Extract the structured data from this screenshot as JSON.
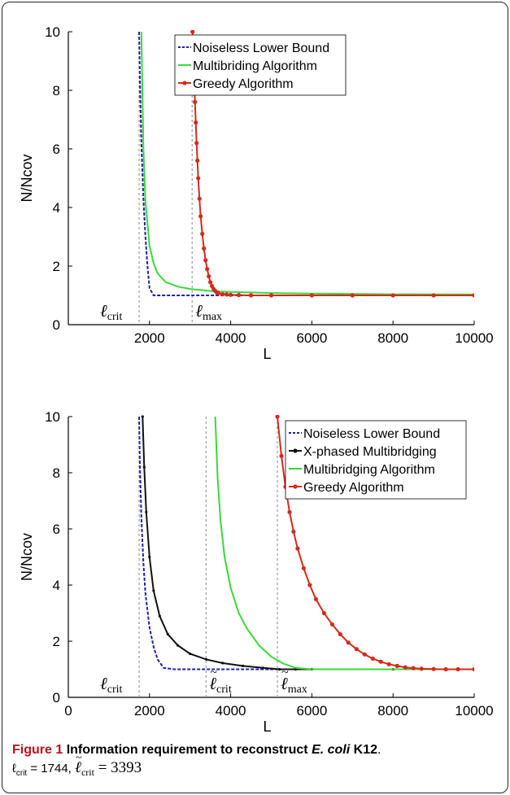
{
  "charts": [
    {
      "ylabel": "N/Ncov",
      "xlabel": "L",
      "x_ticks": [
        "2000",
        "4000",
        "6000",
        "8000",
        "10000"
      ],
      "y_ticks": [
        "0",
        "2",
        "4",
        "6",
        "8",
        "10"
      ],
      "legend": [
        "Noiseless Lower Bound",
        "Multibriding Algorithm",
        "Greedy Algorithm"
      ],
      "markers": [
        {
          "label": "ℓ",
          "sub": "crit",
          "tilde": false
        },
        {
          "label": "ℓ",
          "sub": "max",
          "tilde": false
        }
      ]
    },
    {
      "ylabel": "N/Ncov",
      "xlabel": "L",
      "x_ticks": [
        "0",
        "2000",
        "4000",
        "6000",
        "8000",
        "10000"
      ],
      "y_ticks": [
        "0",
        "2",
        "4",
        "6",
        "8",
        "10"
      ],
      "legend": [
        "Noiseless Lower Bound",
        "X-phased Multibridging",
        "Multibridging Algorithm",
        "Greedy Algorithm"
      ],
      "markers": [
        {
          "label": "ℓ",
          "sub": "crit",
          "tilde": false
        },
        {
          "label": "ℓ",
          "sub": "crit",
          "tilde": true
        },
        {
          "label": "ℓ",
          "sub": "max",
          "tilde": true
        }
      ]
    }
  ],
  "chart_data": [
    {
      "type": "line",
      "xlabel": "L",
      "ylabel": "N/Ncov",
      "xlim": [
        0,
        10000
      ],
      "ylim": [
        0,
        10
      ],
      "vlines": [
        1744,
        3050
      ],
      "series": [
        {
          "name": "Noiseless Lower Bound",
          "color": "#1f1fa8",
          "style": "dashed",
          "x": [
            1744,
            1760,
            1800,
            1850,
            1900,
            1950,
            2000,
            2100,
            2500,
            4000,
            6000,
            8000,
            10000
          ],
          "y": [
            10,
            8.6,
            6.2,
            4.3,
            3.0,
            2.0,
            1.25,
            1.0,
            1.0,
            1.0,
            1.0,
            1.0,
            1.0
          ]
        },
        {
          "name": "Multibriding Algorithm",
          "color": "#3ad83a",
          "style": "solid",
          "x": [
            1800,
            1850,
            1900,
            2000,
            2100,
            2200,
            2400,
            2700,
            3000,
            3500,
            4000,
            5000,
            6000,
            8000,
            10000
          ],
          "y": [
            10,
            6.0,
            4.2,
            2.7,
            2.1,
            1.75,
            1.45,
            1.3,
            1.22,
            1.15,
            1.12,
            1.08,
            1.06,
            1.04,
            1.03
          ]
        },
        {
          "name": "Greedy Algorithm",
          "color": "#d42a1c",
          "style": "marker",
          "x": [
            3060,
            3080,
            3100,
            3120,
            3140,
            3160,
            3180,
            3200,
            3230,
            3260,
            3300,
            3340,
            3380,
            3420,
            3460,
            3500,
            3540,
            3580,
            3620,
            3660,
            3700,
            3800,
            3900,
            4000,
            4200,
            4500,
            5000,
            6000,
            7000,
            8000,
            9000,
            10000
          ],
          "y": [
            10,
            9.2,
            8.4,
            7.6,
            6.9,
            6.2,
            5.6,
            5.0,
            4.3,
            3.7,
            3.1,
            2.6,
            2.2,
            1.9,
            1.65,
            1.45,
            1.32,
            1.22,
            1.15,
            1.1,
            1.07,
            1.04,
            1.03,
            1.02,
            1.01,
            1.0,
            1.0,
            1.0,
            1.0,
            1.0,
            1.0,
            1.0
          ]
        }
      ]
    },
    {
      "type": "line",
      "xlabel": "L",
      "ylabel": "N/Ncov",
      "xlim": [
        0,
        10000
      ],
      "ylim": [
        0,
        10
      ],
      "vlines": [
        1744,
        3393,
        5150
      ],
      "series": [
        {
          "name": "Noiseless Lower Bound",
          "color": "#1f1fa8",
          "style": "dashed",
          "x": [
            1744,
            1760,
            1800,
            1850,
            1900,
            2000,
            2100,
            2200,
            2350,
            2600,
            4000,
            6000,
            10000
          ],
          "y": [
            10,
            8.5,
            6.4,
            4.8,
            3.7,
            2.5,
            1.8,
            1.35,
            1.05,
            1.0,
            1.0,
            1.0,
            1.0
          ]
        },
        {
          "name": "X-phased Multibridging",
          "color": "#111111",
          "style": "dotted-marker",
          "x": [
            1830,
            1870,
            1920,
            2000,
            2100,
            2250,
            2450,
            2700,
            3000,
            3400,
            3800,
            4300,
            4800,
            5200,
            5600,
            6000,
            8000,
            10000
          ],
          "y": [
            10,
            8.2,
            6.6,
            5.0,
            3.8,
            2.9,
            2.25,
            1.85,
            1.55,
            1.35,
            1.22,
            1.12,
            1.05,
            1.0,
            1.0,
            1.0,
            1.0,
            1.0
          ]
        },
        {
          "name": "Multibridging Algorithm",
          "color": "#3ad83a",
          "style": "solid",
          "x": [
            3620,
            3680,
            3750,
            3850,
            4000,
            4200,
            4400,
            4700,
            5000,
            5300,
            5600,
            6000,
            8000,
            10000
          ],
          "y": [
            10,
            7.8,
            6.3,
            5.0,
            3.9,
            3.0,
            2.45,
            1.85,
            1.45,
            1.2,
            1.05,
            1.0,
            1.0,
            1.0
          ]
        },
        {
          "name": "Greedy Algorithm",
          "color": "#d42a1c",
          "style": "marker",
          "x": [
            5150,
            5250,
            5350,
            5450,
            5550,
            5650,
            5800,
            5950,
            6100,
            6300,
            6500,
            6700,
            6900,
            7100,
            7300,
            7500,
            7700,
            7900,
            8100,
            8300,
            8500,
            8700,
            9000,
            9300,
            9600,
            10000
          ],
          "y": [
            10,
            8.6,
            7.5,
            6.6,
            5.9,
            5.3,
            4.6,
            4.0,
            3.5,
            3.0,
            2.6,
            2.25,
            1.95,
            1.72,
            1.53,
            1.38,
            1.27,
            1.18,
            1.12,
            1.07,
            1.04,
            1.02,
            1.01,
            1.0,
            1.0,
            1.0
          ]
        }
      ]
    }
  ],
  "caption": {
    "label": "Figure 1",
    "text_prefix": "Information requirement to reconstruct ",
    "species": "E. coli",
    "strain": " K12",
    "end": ".",
    "line2_a": "ℓ",
    "line2_a_sub": "crit",
    "line2_a_val": " = 1744, ",
    "line2_b": "ℓ",
    "line2_b_sub": "crit",
    "line2_b_val": " = 3393"
  }
}
